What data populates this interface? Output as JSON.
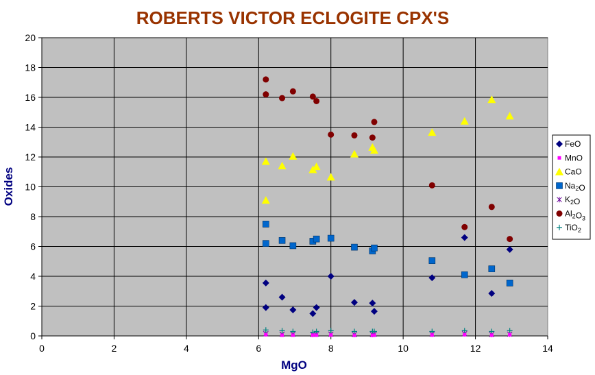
{
  "chart_data": {
    "type": "scatter",
    "title": "ROBERTS VICTOR ECLOGITE CPX'S",
    "xlabel": "MgO",
    "ylabel": "Oxides",
    "xlim": [
      0,
      14
    ],
    "ylim": [
      0,
      20
    ],
    "xticks": [
      0,
      2,
      4,
      6,
      8,
      10,
      12,
      14
    ],
    "yticks": [
      0,
      2,
      4,
      6,
      8,
      10,
      12,
      14,
      16,
      18,
      20
    ],
    "grid": true,
    "plot_background": "#c0c0c0",
    "legend_position": "right",
    "series": [
      {
        "name": "FeO",
        "legend_parts": [
          {
            "t": "FeO",
            "sub": false
          }
        ],
        "marker": "diamond",
        "color": "#000080",
        "points": [
          [
            6.2,
            3.55
          ],
          [
            6.2,
            1.9
          ],
          [
            6.65,
            2.6
          ],
          [
            6.95,
            1.75
          ],
          [
            7.5,
            1.5
          ],
          [
            7.6,
            1.9
          ],
          [
            8.0,
            4.0
          ],
          [
            8.65,
            2.25
          ],
          [
            9.15,
            2.2
          ],
          [
            9.2,
            1.65
          ],
          [
            10.8,
            3.9
          ],
          [
            11.7,
            6.6
          ],
          [
            12.45,
            2.85
          ],
          [
            12.95,
            5.8
          ]
        ]
      },
      {
        "name": "MnO",
        "legend_parts": [
          {
            "t": "MnO",
            "sub": false
          }
        ],
        "marker": "square-small",
        "color": "#ff00ff",
        "points": [
          [
            6.2,
            0.08
          ],
          [
            6.65,
            0.05
          ],
          [
            6.95,
            0.05
          ],
          [
            7.5,
            0.05
          ],
          [
            7.6,
            0.05
          ],
          [
            8.0,
            0.06
          ],
          [
            8.65,
            0.04
          ],
          [
            9.15,
            0.04
          ],
          [
            9.2,
            0.05
          ],
          [
            10.8,
            0.06
          ],
          [
            11.7,
            0.08
          ],
          [
            12.45,
            0.05
          ],
          [
            12.95,
            0.08
          ]
        ]
      },
      {
        "name": "CaO",
        "legend_parts": [
          {
            "t": "CaO",
            "sub": false
          }
        ],
        "marker": "triangle",
        "color": "#ffff00",
        "points": [
          [
            6.2,
            9.1
          ],
          [
            6.2,
            11.7
          ],
          [
            6.65,
            11.4
          ],
          [
            6.95,
            12.05
          ],
          [
            7.5,
            11.15
          ],
          [
            7.6,
            11.35
          ],
          [
            8.0,
            10.65
          ],
          [
            8.65,
            12.2
          ],
          [
            9.15,
            12.65
          ],
          [
            9.2,
            12.45
          ],
          [
            10.8,
            13.65
          ],
          [
            11.7,
            14.4
          ],
          [
            12.45,
            15.85
          ],
          [
            12.95,
            14.75
          ]
        ]
      },
      {
        "name": "Na2O",
        "legend_parts": [
          {
            "t": "Na",
            "sub": false
          },
          {
            "t": "2",
            "sub": true
          },
          {
            "t": "O",
            "sub": false
          }
        ],
        "marker": "square",
        "color": "#0066cc",
        "points": [
          [
            6.2,
            7.5
          ],
          [
            6.2,
            6.2
          ],
          [
            6.65,
            6.4
          ],
          [
            6.95,
            6.05
          ],
          [
            7.5,
            6.35
          ],
          [
            7.6,
            6.5
          ],
          [
            8.0,
            6.55
          ],
          [
            8.65,
            5.95
          ],
          [
            9.15,
            5.7
          ],
          [
            9.2,
            5.9
          ],
          [
            10.8,
            5.05
          ],
          [
            11.7,
            4.1
          ],
          [
            12.45,
            4.5
          ],
          [
            12.95,
            3.55
          ]
        ]
      },
      {
        "name": "K2O",
        "legend_parts": [
          {
            "t": "K",
            "sub": false
          },
          {
            "t": "2",
            "sub": true
          },
          {
            "t": "O",
            "sub": false
          }
        ],
        "marker": "asterisk",
        "color": "#660099",
        "points": [
          [
            6.2,
            0.15
          ],
          [
            6.65,
            0.12
          ],
          [
            6.95,
            0.12
          ],
          [
            7.5,
            0.1
          ],
          [
            7.6,
            0.12
          ],
          [
            8.0,
            0.12
          ],
          [
            8.65,
            0.1
          ],
          [
            9.15,
            0.1
          ],
          [
            9.2,
            0.12
          ],
          [
            10.8,
            0.12
          ],
          [
            11.7,
            0.15
          ],
          [
            12.45,
            0.1
          ],
          [
            12.95,
            0.12
          ]
        ]
      },
      {
        "name": "Al2O3",
        "legend_parts": [
          {
            "t": "Al",
            "sub": false
          },
          {
            "t": "2",
            "sub": true
          },
          {
            "t": "O",
            "sub": false
          },
          {
            "t": "3",
            "sub": true
          }
        ],
        "marker": "circle",
        "color": "#800000",
        "points": [
          [
            6.2,
            17.2
          ],
          [
            6.2,
            16.2
          ],
          [
            6.65,
            15.95
          ],
          [
            6.95,
            16.4
          ],
          [
            7.5,
            16.05
          ],
          [
            7.6,
            15.75
          ],
          [
            8.0,
            13.5
          ],
          [
            8.65,
            13.45
          ],
          [
            9.15,
            13.3
          ],
          [
            9.2,
            14.35
          ],
          [
            10.8,
            10.1
          ],
          [
            11.7,
            7.3
          ],
          [
            12.45,
            8.65
          ],
          [
            12.95,
            6.5
          ]
        ]
      },
      {
        "name": "TiO2",
        "legend_parts": [
          {
            "t": "TiO",
            "sub": false
          },
          {
            "t": "2",
            "sub": true
          }
        ],
        "marker": "plus",
        "color": "#008080",
        "points": [
          [
            6.2,
            0.4
          ],
          [
            6.65,
            0.35
          ],
          [
            6.95,
            0.3
          ],
          [
            7.5,
            0.25
          ],
          [
            7.6,
            0.3
          ],
          [
            8.0,
            0.35
          ],
          [
            8.65,
            0.3
          ],
          [
            9.15,
            0.3
          ],
          [
            9.2,
            0.3
          ],
          [
            10.8,
            0.3
          ],
          [
            11.7,
            0.35
          ],
          [
            12.45,
            0.3
          ],
          [
            12.95,
            0.35
          ]
        ]
      }
    ]
  }
}
